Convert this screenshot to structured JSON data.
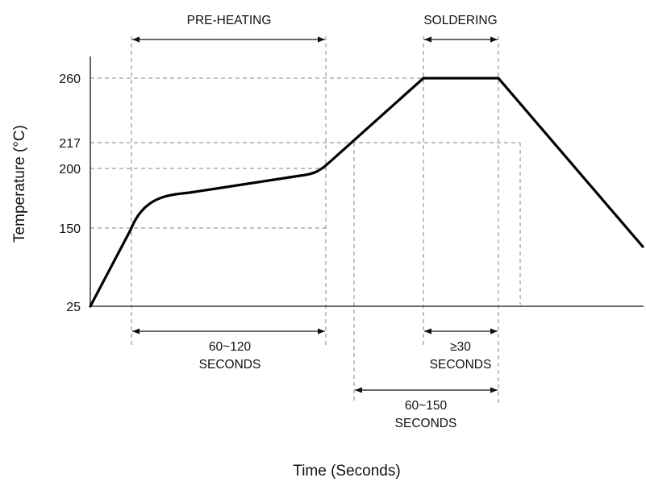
{
  "chart_data": {
    "type": "line",
    "title": "",
    "xlabel": "Time (Seconds)",
    "ylabel": "Temperature (°C)",
    "y_ticks": [
      "25",
      "150",
      "200",
      "217",
      "260"
    ],
    "series": [
      {
        "values": [
          {
            "t": 0,
            "temp": 25
          },
          {
            "t": 60,
            "temp": 150
          },
          {
            "t": 180,
            "temp": 200
          },
          {
            "t": 228,
            "temp": 260
          },
          {
            "t": 259,
            "temp": 260
          }
        ]
      }
    ],
    "annotations": {
      "preheating": "PRE-HEATING",
      "soldering": "SOLDERING",
      "span_60_120_line1": "60~120",
      "span_60_120_line2": "SECONDS",
      "span_ge30_line1": "≥30",
      "span_ge30_line2": "SECONDS",
      "span_60_150_line1": "60~150",
      "span_60_150_line2": "SECONDS"
    }
  }
}
